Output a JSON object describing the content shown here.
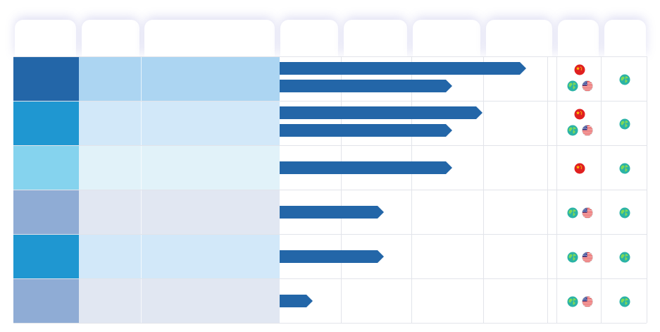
{
  "colors": {
    "bar": "#2366a8",
    "grid_line": "#e2e4ea",
    "flag_red": "#e02020",
    "flag_star": "#ffd400",
    "globe_water": "#2bb3a6",
    "globe_land": "#7ed957"
  },
  "header": {
    "columns": [
      "",
      "",
      "",
      "",
      "",
      "",
      "",
      "",
      ""
    ]
  },
  "rows": [
    {
      "color": "#2366a8",
      "tint": "#acd5f2",
      "bar_values": [
        0.9,
        0.63
      ],
      "flags": [
        "cn-flag-icon",
        "globe-icon",
        "us-flag-icon"
      ],
      "regions": [
        "globe-icon"
      ]
    },
    {
      "color": "#1f97d1",
      "tint": "#d2e8f9",
      "bar_values": [
        0.74,
        0.63
      ],
      "flags": [
        "cn-flag-icon",
        "globe-icon",
        "us-flag-icon"
      ],
      "regions": [
        "globe-icon"
      ]
    },
    {
      "color": "#85d3ee",
      "tint": "#e1f2f9",
      "bar_values": [
        0.63
      ],
      "flags": [
        "cn-flag-icon"
      ],
      "regions": [
        "globe-icon"
      ]
    },
    {
      "color": "#8facd5",
      "tint": "#e1e7f2",
      "bar_values": [
        0.38
      ],
      "flags": [
        "globe-icon",
        "us-flag-icon"
      ],
      "regions": [
        "globe-icon"
      ]
    },
    {
      "color": "#1f97d1",
      "tint": "#d2e8f9",
      "bar_values": [
        0.38
      ],
      "flags": [
        "globe-icon",
        "us-flag-icon"
      ],
      "regions": [
        "globe-icon"
      ]
    },
    {
      "color": "#8facd5",
      "tint": "#e1e7f2",
      "bar_values": [
        0.12
      ],
      "flags": [
        "globe-icon",
        "us-flag-icon"
      ],
      "regions": [
        "globe-icon"
      ]
    }
  ]
}
